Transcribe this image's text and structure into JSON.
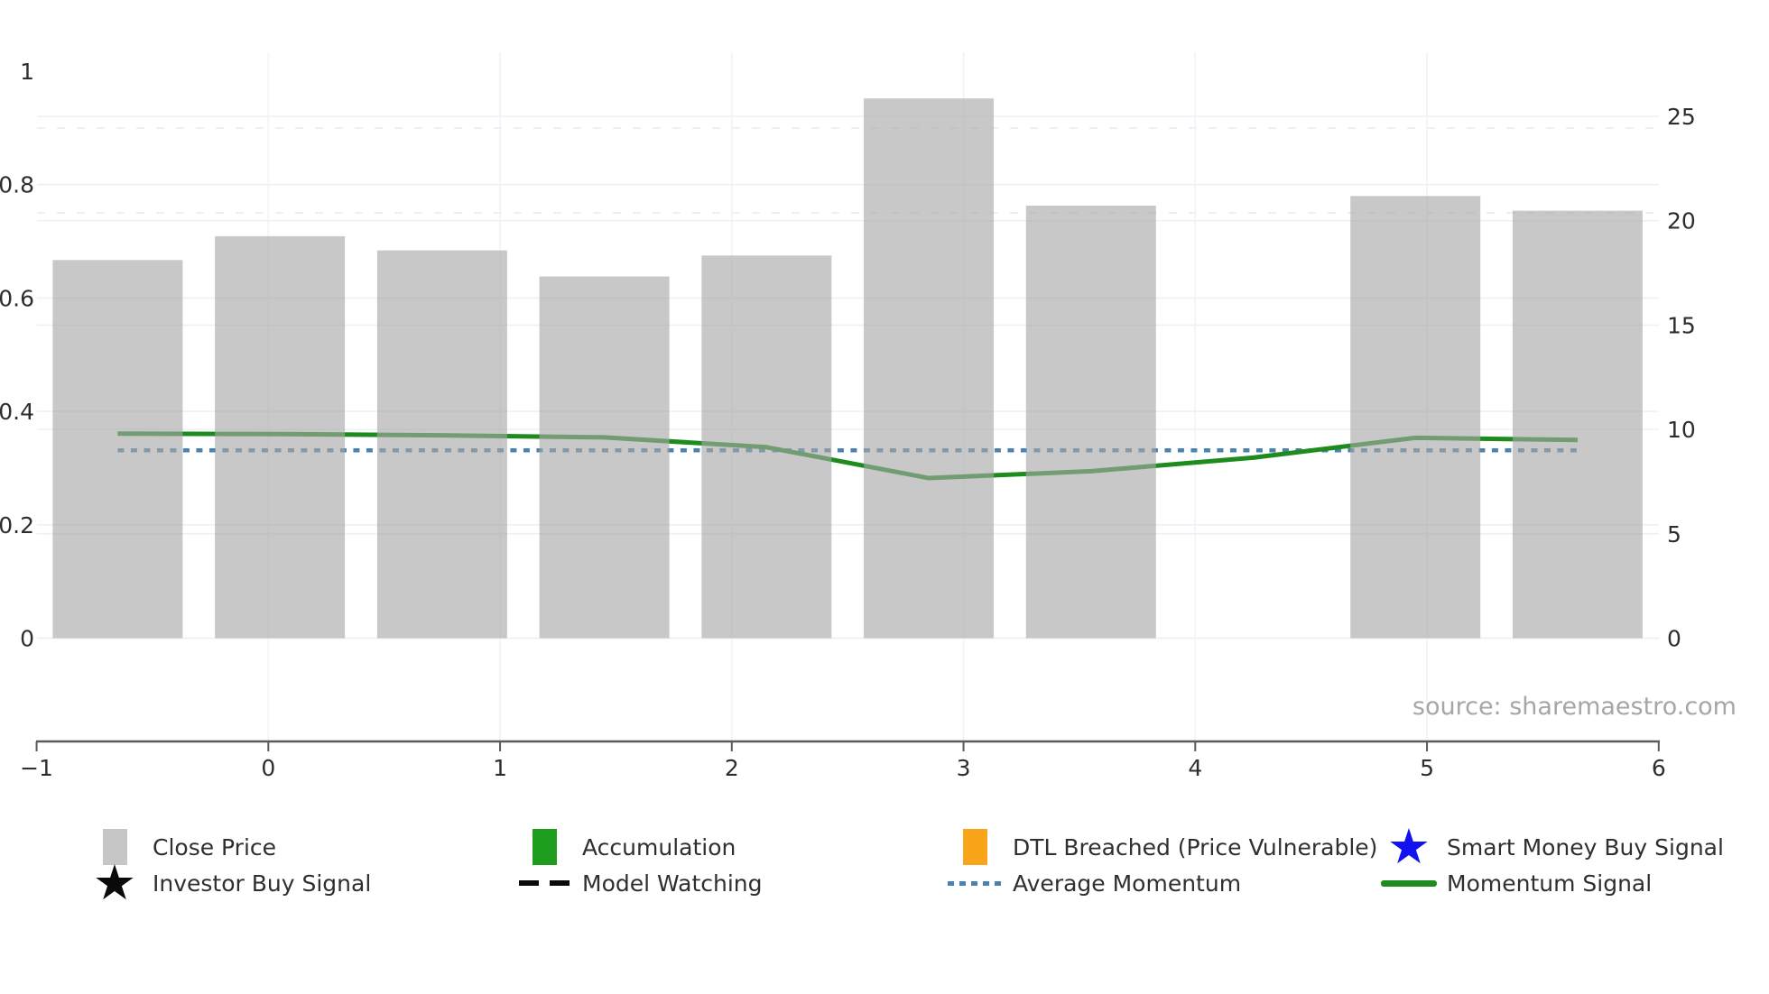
{
  "source_text": "source: sharemaestro.com",
  "icons": {
    "star": "★"
  },
  "colors": {
    "bar_fill": "rgba(166,166,166,0.62)",
    "bar_legend": "#c6c6c6",
    "momentum_green": "#1e8b1e",
    "accumulation_green": "#1e9c1e",
    "dtl_orange": "#f9a51a",
    "smart_money_blue": "#1212f0",
    "avg_momentum_blue": "#4a81af",
    "black": "#0a0a0a",
    "axis_line": "#5a5a5a",
    "tick_label": "#2e2e2e",
    "grid_major": "#edf0f6",
    "grid_minor_dashed": "#e7ebf3",
    "grid_vertical": "#f1f3f7",
    "source_gray": "#a6a6a6"
  },
  "axes": {
    "x_tick_labels": [
      "−1",
      "0",
      "1",
      "2",
      "3",
      "4",
      "5",
      "6"
    ],
    "x_tick_values": [
      -1,
      0,
      1,
      2,
      3,
      4,
      5,
      6
    ],
    "left_tick_labels": [
      "1",
      "0.8",
      "0.6",
      "0.4",
      "0.2",
      "0"
    ],
    "left_tick_values": [
      1,
      0.8,
      0.6,
      0.4,
      0.2,
      0
    ],
    "right_tick_labels": [
      "25",
      "20",
      "15",
      "10",
      "5",
      "0"
    ],
    "right_tick_values": [
      25,
      20,
      15,
      10,
      5,
      0
    ]
  },
  "chart_data": {
    "type": "combo-bar-line-dual-axis",
    "xlim": [
      -1,
      6
    ],
    "grid": true,
    "legend_position": "bottom",
    "x_positions": [
      -0.65,
      0.05,
      0.75,
      1.45,
      2.15,
      2.85,
      3.55,
      4.25,
      4.95,
      5.65
    ],
    "left_axis": {
      "lim": [
        0,
        1
      ],
      "ticks": [
        1,
        0.8,
        0.6,
        0.4,
        0.2,
        0
      ],
      "minor_dashed_ticks": [
        0.9,
        0.75
      ]
    },
    "right_axis": {
      "lim": [
        0,
        25
      ],
      "ticks": [
        25,
        20,
        15,
        10,
        5,
        0
      ]
    },
    "series": [
      {
        "name": "Close Price",
        "type": "bar",
        "axis": "left",
        "values": [
          0.667,
          0.709,
          0.684,
          0.638,
          0.675,
          0.952,
          0.763,
          null,
          0.78,
          0.754
        ]
      },
      {
        "name": "Momentum Signal",
        "type": "line",
        "axis": "right",
        "values": [
          9.8,
          9.78,
          9.72,
          9.62,
          9.15,
          7.67,
          8.0,
          8.65,
          9.6,
          9.5
        ]
      },
      {
        "name": "Average Momentum",
        "type": "line",
        "style": "dotted",
        "axis": "right",
        "values": [
          9,
          9,
          9,
          9,
          9,
          9,
          9,
          9,
          9,
          9
        ]
      }
    ]
  },
  "legend": {
    "rows": [
      [
        {
          "label": "Close Price",
          "marker": "square",
          "color_key": "bar_legend"
        },
        {
          "label": "Accumulation",
          "marker": "square",
          "color_key": "accumulation_green"
        },
        {
          "label": "DTL Breached (Price Vulnerable)",
          "marker": "square",
          "color_key": "dtl_orange"
        },
        {
          "label": "Smart Money Buy Signal",
          "marker": "star",
          "color_key": "smart_money_blue"
        }
      ],
      [
        {
          "label": "Investor Buy Signal",
          "marker": "star",
          "color_key": "black"
        },
        {
          "label": "Model Watching",
          "marker": "dashed-line",
          "color_key": "black"
        },
        {
          "label": "Average Momentum",
          "marker": "dotted-line",
          "color_key": "avg_momentum_blue"
        },
        {
          "label": "Momentum Signal",
          "marker": "line",
          "color_key": "momentum_green"
        }
      ]
    ]
  }
}
